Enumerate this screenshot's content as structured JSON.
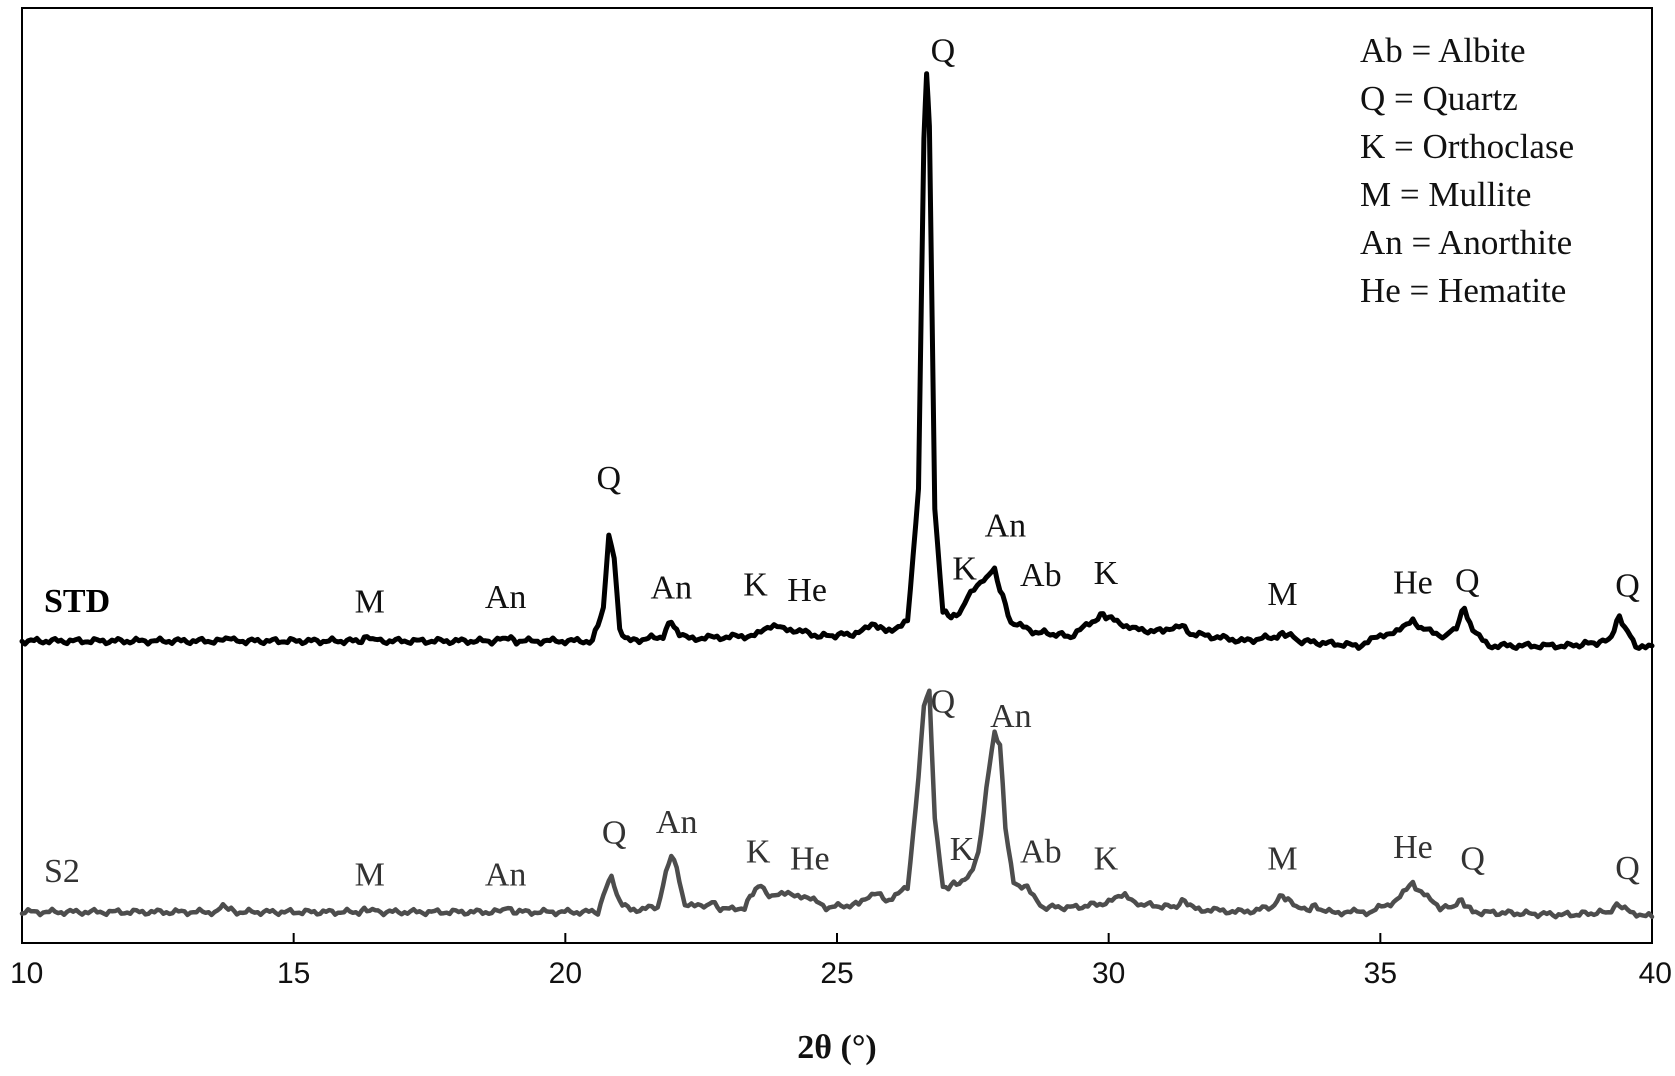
{
  "chart_data": {
    "type": "line",
    "xlabel": "2θ (°)",
    "xlim": [
      10,
      40
    ],
    "xticks": [
      10,
      15,
      20,
      25,
      30,
      35,
      40
    ],
    "grid": false,
    "legend_position": "top-right",
    "legend": [
      "Ab = Albite",
      "Q = Quartz",
      "K = Orthoclase",
      "M = Mullite",
      "An = Anorthite",
      "He = Hematite"
    ],
    "series": [
      {
        "name": "STD",
        "color": "#000000",
        "baseline": 0,
        "points": [
          [
            10.0,
            0.0
          ],
          [
            13.7,
            0.0
          ],
          [
            13.8,
            0.05
          ],
          [
            13.9,
            0.0
          ],
          [
            16.2,
            0.0
          ],
          [
            16.4,
            0.04
          ],
          [
            16.6,
            0.0
          ],
          [
            18.7,
            0.0
          ],
          [
            18.9,
            0.04
          ],
          [
            19.1,
            0.0
          ],
          [
            20.5,
            0.0
          ],
          [
            20.7,
            0.35
          ],
          [
            20.8,
            1.1
          ],
          [
            20.9,
            0.9
          ],
          [
            21.0,
            0.1
          ],
          [
            21.2,
            0.0
          ],
          [
            21.8,
            0.05
          ],
          [
            21.95,
            0.22
          ],
          [
            22.1,
            0.05
          ],
          [
            22.4,
            0.03
          ],
          [
            23.3,
            0.05
          ],
          [
            23.6,
            0.1
          ],
          [
            23.9,
            0.15
          ],
          [
            24.2,
            0.12
          ],
          [
            24.7,
            0.05
          ],
          [
            25.4,
            0.08
          ],
          [
            25.7,
            0.18
          ],
          [
            25.9,
            0.1
          ],
          [
            26.3,
            0.2
          ],
          [
            26.5,
            1.6
          ],
          [
            26.6,
            5.3
          ],
          [
            26.65,
            6.0
          ],
          [
            26.7,
            5.4
          ],
          [
            26.8,
            1.4
          ],
          [
            26.95,
            0.3
          ],
          [
            27.2,
            0.25
          ],
          [
            27.4,
            0.45
          ],
          [
            27.7,
            0.65
          ],
          [
            27.9,
            0.75
          ],
          [
            28.0,
            0.55
          ],
          [
            28.2,
            0.2
          ],
          [
            28.6,
            0.1
          ],
          [
            29.3,
            0.05
          ],
          [
            29.7,
            0.2
          ],
          [
            29.9,
            0.28
          ],
          [
            30.1,
            0.22
          ],
          [
            30.5,
            0.12
          ],
          [
            31.0,
            0.1
          ],
          [
            31.3,
            0.18
          ],
          [
            31.5,
            0.08
          ],
          [
            32.5,
            0.0
          ],
          [
            33.1,
            0.05
          ],
          [
            33.3,
            0.08
          ],
          [
            33.5,
            0.0
          ],
          [
            34.6,
            -0.05
          ],
          [
            35.0,
            0.05
          ],
          [
            35.3,
            0.12
          ],
          [
            35.6,
            0.2
          ],
          [
            35.8,
            0.12
          ],
          [
            36.2,
            0.05
          ],
          [
            36.4,
            0.15
          ],
          [
            36.55,
            0.35
          ],
          [
            36.7,
            0.1
          ],
          [
            37.0,
            -0.05
          ],
          [
            38.5,
            -0.05
          ],
          [
            39.2,
            0.0
          ],
          [
            39.4,
            0.25
          ],
          [
            39.55,
            0.1
          ],
          [
            39.7,
            -0.05
          ],
          [
            40.0,
            -0.05
          ]
        ]
      },
      {
        "name": "S2",
        "color": "#4d4d4d",
        "baseline": 0,
        "points": [
          [
            10.0,
            0.0
          ],
          [
            13.6,
            0.0
          ],
          [
            13.7,
            0.08
          ],
          [
            13.9,
            0.0
          ],
          [
            16.2,
            0.0
          ],
          [
            16.4,
            0.03
          ],
          [
            16.6,
            0.0
          ],
          [
            18.7,
            0.0
          ],
          [
            18.9,
            0.04
          ],
          [
            19.1,
            0.0
          ],
          [
            20.6,
            0.0
          ],
          [
            20.75,
            0.25
          ],
          [
            20.85,
            0.4
          ],
          [
            20.95,
            0.15
          ],
          [
            21.2,
            0.02
          ],
          [
            21.7,
            0.05
          ],
          [
            21.85,
            0.4
          ],
          [
            21.95,
            0.62
          ],
          [
            22.05,
            0.45
          ],
          [
            22.2,
            0.08
          ],
          [
            22.5,
            0.05
          ],
          [
            22.7,
            0.1
          ],
          [
            22.9,
            0.02
          ],
          [
            23.3,
            0.05
          ],
          [
            23.5,
            0.25
          ],
          [
            23.6,
            0.27
          ],
          [
            23.8,
            0.15
          ],
          [
            24.1,
            0.2
          ],
          [
            24.4,
            0.17
          ],
          [
            24.8,
            0.05
          ],
          [
            25.4,
            0.08
          ],
          [
            25.7,
            0.22
          ],
          [
            25.9,
            0.12
          ],
          [
            26.3,
            0.25
          ],
          [
            26.5,
            1.4
          ],
          [
            26.6,
            2.2
          ],
          [
            26.7,
            2.3
          ],
          [
            26.8,
            1.0
          ],
          [
            26.95,
            0.25
          ],
          [
            27.2,
            0.3
          ],
          [
            27.4,
            0.35
          ],
          [
            27.6,
            0.6
          ],
          [
            27.75,
            1.3
          ],
          [
            27.9,
            1.9
          ],
          [
            28.0,
            1.75
          ],
          [
            28.1,
            0.9
          ],
          [
            28.25,
            0.3
          ],
          [
            28.5,
            0.25
          ],
          [
            28.8,
            0.05
          ],
          [
            29.4,
            0.05
          ],
          [
            30.0,
            0.1
          ],
          [
            30.3,
            0.18
          ],
          [
            30.6,
            0.08
          ],
          [
            31.2,
            0.05
          ],
          [
            31.4,
            0.12
          ],
          [
            31.6,
            0.03
          ],
          [
            32.5,
            0.0
          ],
          [
            33.0,
            0.05
          ],
          [
            33.2,
            0.18
          ],
          [
            33.35,
            0.1
          ],
          [
            33.6,
            0.02
          ],
          [
            33.8,
            0.06
          ],
          [
            34.0,
            0.0
          ],
          [
            34.8,
            0.0
          ],
          [
            35.3,
            0.12
          ],
          [
            35.6,
            0.3
          ],
          [
            35.75,
            0.2
          ],
          [
            36.1,
            0.05
          ],
          [
            36.3,
            0.05
          ],
          [
            36.5,
            0.12
          ],
          [
            36.7,
            0.0
          ],
          [
            38.5,
            -0.03
          ],
          [
            39.2,
            0.0
          ],
          [
            39.4,
            0.08
          ],
          [
            39.6,
            0.0
          ],
          [
            40.0,
            -0.05
          ]
        ]
      }
    ],
    "peak_labels": [
      {
        "series": "STD",
        "text": "M",
        "x": 16.4,
        "y": 0.3
      },
      {
        "series": "STD",
        "text": "An",
        "x": 18.9,
        "y": 0.35
      },
      {
        "series": "STD",
        "text": "Q",
        "x": 20.8,
        "y": 1.6
      },
      {
        "series": "STD",
        "text": "An",
        "x": 21.95,
        "y": 0.45
      },
      {
        "series": "STD",
        "text": "K",
        "x": 23.5,
        "y": 0.48
      },
      {
        "series": "STD",
        "text": "He",
        "x": 24.45,
        "y": 0.42
      },
      {
        "series": "STD",
        "text": "Q",
        "x": 26.95,
        "y": 6.1
      },
      {
        "series": "STD",
        "text": "K",
        "x": 27.35,
        "y": 0.65
      },
      {
        "series": "STD",
        "text": "An",
        "x": 28.1,
        "y": 1.1
      },
      {
        "series": "STD",
        "text": "Ab",
        "x": 28.75,
        "y": 0.58
      },
      {
        "series": "STD",
        "text": "K",
        "x": 29.95,
        "y": 0.6
      },
      {
        "series": "STD",
        "text": "M",
        "x": 33.2,
        "y": 0.38
      },
      {
        "series": "STD",
        "text": "He",
        "x": 35.6,
        "y": 0.5
      },
      {
        "series": "STD",
        "text": "Q",
        "x": 36.6,
        "y": 0.52
      },
      {
        "series": "STD",
        "text": "Q",
        "x": 39.55,
        "y": 0.47
      },
      {
        "series": "S2",
        "text": "M",
        "x": 16.4,
        "y": 0.28
      },
      {
        "series": "S2",
        "text": "An",
        "x": 18.9,
        "y": 0.28
      },
      {
        "series": "S2",
        "text": "Q",
        "x": 20.9,
        "y": 0.72
      },
      {
        "series": "S2",
        "text": "An",
        "x": 22.05,
        "y": 0.83
      },
      {
        "series": "S2",
        "text": "K",
        "x": 23.55,
        "y": 0.52
      },
      {
        "series": "S2",
        "text": "He",
        "x": 24.5,
        "y": 0.45
      },
      {
        "series": "S2",
        "text": "Q",
        "x": 26.95,
        "y": 2.1
      },
      {
        "series": "S2",
        "text": "An",
        "x": 28.2,
        "y": 1.95
      },
      {
        "series": "S2",
        "text": "K",
        "x": 27.3,
        "y": 0.55
      },
      {
        "series": "S2",
        "text": "Ab",
        "x": 28.75,
        "y": 0.52
      },
      {
        "series": "S2",
        "text": "K",
        "x": 29.95,
        "y": 0.45
      },
      {
        "series": "S2",
        "text": "M",
        "x": 33.2,
        "y": 0.45
      },
      {
        "series": "S2",
        "text": "He",
        "x": 35.6,
        "y": 0.57
      },
      {
        "series": "S2",
        "text": "Q",
        "x": 36.7,
        "y": 0.45
      },
      {
        "series": "S2",
        "text": "Q",
        "x": 39.55,
        "y": 0.35
      }
    ]
  }
}
